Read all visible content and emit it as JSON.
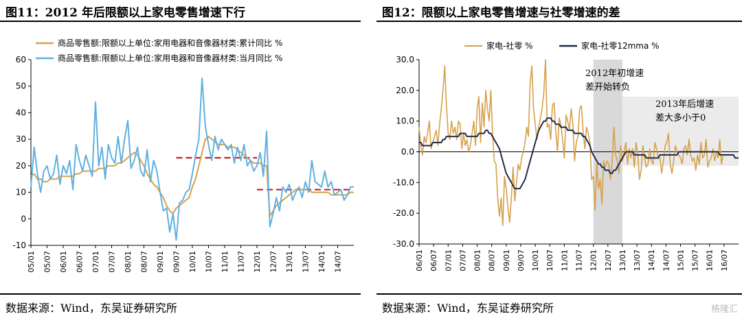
{
  "watermark": "格隆汇",
  "chart_data": [
    {
      "type": "line",
      "title": "图11：2012 年后限额以上家电零售增速下行",
      "source": "数据来源：Wind，东吴证券研究所",
      "ylim": [
        -10,
        60
      ],
      "yticks": [
        -10,
        0,
        10,
        20,
        30,
        40,
        50,
        60
      ],
      "xlabels": [
        "05/01",
        "05/07",
        "06/01",
        "06/07",
        "07/01",
        "07/07",
        "08/01",
        "08/07",
        "09/01",
        "09/07",
        "10/01",
        "10/07",
        "11/01",
        "11/07",
        "12/01",
        "12/07",
        "13/01",
        "13/07",
        "14/01",
        "14/07"
      ],
      "legend_position": "top-left",
      "series": [
        {
          "name": "商品零售额:限额以上单位:家用电器和音像器材类:累计同比 %",
          "color": "#D6A04A",
          "values": [
            16,
            17,
            15,
            15,
            14,
            14,
            15,
            15,
            15,
            16,
            16,
            16,
            16,
            16,
            17,
            17,
            18,
            18,
            18,
            18,
            18,
            19,
            19,
            19,
            20,
            20,
            20,
            21,
            21,
            22,
            23,
            24,
            25,
            24,
            22,
            20,
            17,
            15,
            13,
            12,
            10,
            8,
            5,
            3,
            2,
            4,
            5,
            6,
            7,
            8,
            12,
            15,
            20,
            25,
            30,
            31,
            30,
            29,
            28,
            28,
            28,
            27,
            27,
            27,
            26,
            25,
            24,
            23,
            22,
            21,
            21,
            21,
            20,
            20,
            1,
            3,
            5,
            6,
            7,
            8,
            9,
            10,
            11,
            11,
            11,
            11,
            11,
            10,
            10,
            10,
            10,
            10,
            10,
            9,
            9,
            9,
            9,
            9,
            9,
            10,
            10
          ]
        },
        {
          "name": "商品零售额:限额以上单位:家用电器和音像器材类:当月同比 %",
          "color": "#5FB0E0",
          "values": [
            12,
            27,
            17,
            10,
            18,
            20,
            15,
            17,
            24,
            13,
            20,
            17,
            22,
            11,
            28,
            22,
            18,
            24,
            20,
            16,
            44,
            20,
            27,
            15,
            28,
            23,
            21,
            31,
            21,
            30,
            37,
            19,
            22,
            27,
            18,
            16,
            26,
            14,
            22,
            18,
            10,
            3,
            4,
            -5,
            2,
            -8,
            6,
            7,
            10,
            11,
            17,
            24,
            30,
            53,
            35,
            28,
            22,
            31,
            26,
            30,
            28,
            26,
            28,
            21,
            27,
            22,
            28,
            20,
            22,
            18,
            20,
            25,
            16,
            33,
            -3,
            2,
            8,
            3,
            12,
            10,
            13,
            7,
            10,
            12,
            8,
            14,
            10,
            22,
            14,
            13,
            12,
            18,
            12,
            14,
            9,
            10,
            11,
            7,
            9,
            12,
            12
          ]
        }
      ],
      "annotations": [
        {
          "type": "dashed-line",
          "color": "#C0202A",
          "y": 23,
          "x_from": "09/07",
          "x_to": "12/01"
        },
        {
          "type": "dashed-line",
          "color": "#C0202A",
          "y": 11,
          "x_from": "12/01",
          "x_to": "14/07+"
        }
      ]
    },
    {
      "type": "line",
      "title": "图12：限额以上家电零售增速与社零增速的差",
      "source": "数据来源：Wind，东吴证券研究所",
      "ylim": [
        -30,
        30
      ],
      "yticks": [
        "30.0",
        "20.0",
        "10.0",
        "0.0",
        "-10.0",
        "-20.0",
        "-30.0"
      ],
      "xlabels": [
        "06/01",
        "06/07",
        "07/01",
        "07/07",
        "08/01",
        "08/07",
        "09/01",
        "09/07",
        "10/01",
        "10/07",
        "11/01",
        "11/07",
        "12/01",
        "12/07",
        "13/01",
        "13/07",
        "14/01",
        "14/07",
        "15/01",
        "15/07",
        "16/01",
        "16/07"
      ],
      "legend_position": "top-left",
      "series": [
        {
          "name": "家电-社零 %",
          "color": "#D6A04A",
          "values": [
            8,
            2,
            -1,
            5,
            3,
            6,
            10,
            1,
            3,
            5,
            7,
            2,
            9,
            14,
            20,
            28,
            15,
            6,
            4,
            10,
            6,
            8,
            4,
            10,
            9,
            1,
            6,
            2,
            4,
            0,
            2,
            6,
            10,
            2,
            14,
            18,
            3,
            16,
            8,
            20,
            14,
            10,
            20,
            6,
            -3,
            -4,
            -15,
            -21,
            -15,
            -24,
            -8,
            -12,
            -18,
            -23,
            -15,
            -5,
            -16,
            -10,
            -4,
            -6,
            -2,
            0,
            3,
            8,
            5,
            22,
            28,
            14,
            9,
            4,
            8,
            11,
            14,
            19,
            30,
            8,
            9,
            4,
            15,
            16,
            7,
            0,
            11,
            9,
            4,
            -2,
            12,
            10,
            7,
            14,
            9,
            -3,
            3,
            5,
            14,
            15,
            7,
            1,
            8,
            6,
            3,
            -9,
            -8,
            -19,
            -4,
            -12,
            -9,
            -17,
            -3,
            -5,
            -3,
            -4,
            -9,
            -3,
            8,
            -1,
            -3,
            -7,
            2,
            -3,
            0,
            3,
            -4,
            1,
            -2,
            1,
            -5,
            3,
            -1,
            -9,
            -6,
            2,
            -2,
            -5,
            -4,
            1,
            -3,
            -4,
            3,
            1,
            -2,
            -2,
            -7,
            -3,
            2,
            3,
            6,
            -4,
            -7,
            -3,
            2,
            0,
            -1,
            -2,
            -4,
            1,
            2,
            -1,
            4,
            -1,
            -3,
            -2,
            -6,
            -1,
            -4,
            3,
            -2,
            -1,
            4,
            -5,
            -3,
            -2,
            1,
            -3,
            0,
            -2,
            4,
            -4,
            -1
          ]
        },
        {
          "name": "家电-社零12mma %",
          "color": "#1E2A4A",
          "values": [
            3,
            3,
            2,
            2,
            2,
            2,
            2,
            2,
            3,
            3,
            3,
            3,
            3,
            3,
            4,
            4,
            5,
            5,
            5,
            5,
            5,
            5,
            5,
            5,
            6,
            6,
            6,
            6,
            5,
            5,
            5,
            5,
            5,
            5,
            5,
            6,
            6,
            6,
            6,
            7,
            7,
            6,
            6,
            5,
            4,
            3,
            2,
            1,
            -1,
            -3,
            -5,
            -7,
            -8,
            -9,
            -10,
            -11,
            -12,
            -12,
            -12,
            -12,
            -11,
            -10,
            -9,
            -7,
            -5,
            -3,
            -1,
            1,
            3,
            5,
            7,
            8,
            9,
            10,
            10,
            11,
            11,
            11,
            10,
            10,
            9,
            9,
            9,
            8,
            8,
            8,
            8,
            7,
            7,
            7,
            7,
            6,
            6,
            6,
            6,
            6,
            5,
            5,
            4,
            3,
            2,
            0,
            -1,
            -2,
            -3,
            -4,
            -4,
            -5,
            -5,
            -6,
            -6,
            -6,
            -7,
            -7,
            -6,
            -6,
            -5,
            -4,
            -3,
            -2,
            -1,
            0,
            0,
            0,
            0,
            0,
            -1,
            -1,
            -1,
            -1,
            -1,
            -1,
            -1,
            -2,
            -2,
            -2,
            -2,
            -2,
            -2,
            -2,
            -2,
            -1,
            -1,
            -1,
            -1,
            -1,
            -1,
            -1,
            -1,
            -1,
            -1,
            -1,
            0,
            0,
            0,
            0,
            0,
            0,
            0,
            0,
            0,
            0,
            0,
            0,
            0,
            0,
            0,
            0,
            0,
            0,
            0,
            0,
            0,
            0,
            0,
            0,
            -1,
            -1,
            -1,
            -1,
            -1,
            -1,
            -1,
            -1,
            -1,
            -2,
            -2,
            -2
          ]
        }
      ],
      "annotations": [
        {
          "type": "shaded-band",
          "color": "#D9D9D9",
          "x_from": "12/01",
          "x_to": "13/01",
          "text": "2012年初增速\n差开始转负"
        },
        {
          "type": "shaded-band",
          "color": "#EBEBEB",
          "x_from": "13/01",
          "x_to": "16/07+",
          "text": "2013年后增速\n差大多小于0"
        }
      ]
    }
  ]
}
